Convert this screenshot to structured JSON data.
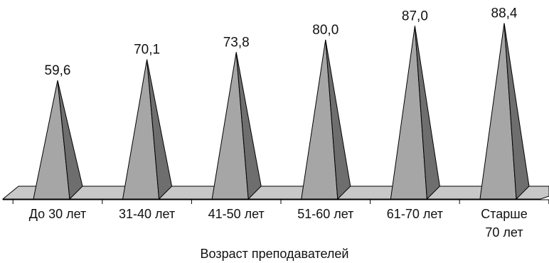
{
  "chart_data": {
    "type": "bar",
    "shape": "3d-pyramid",
    "categories": [
      [
        "До 30 лет"
      ],
      [
        "31-40 лет"
      ],
      [
        "41-50 лет"
      ],
      [
        "51-60 лет"
      ],
      [
        "61-70 лет"
      ],
      [
        "Старше",
        "70 лет"
      ]
    ],
    "values": [
      59.6,
      70.1,
      73.8,
      80.0,
      87.0,
      88.4
    ],
    "value_labels": [
      "59,6",
      "70,1",
      "73,8",
      "80,0",
      "87,0",
      "88,4"
    ],
    "xlabel": "Возраст преподавателей",
    "ylabel": "",
    "ylim": [
      0,
      100
    ],
    "grid": false,
    "legend": "none",
    "colors": {
      "pyramid_front": "#a6a6a6",
      "pyramid_side": "#6e6e6e",
      "floor": "#c8c8c8",
      "outline": "#000000"
    }
  }
}
